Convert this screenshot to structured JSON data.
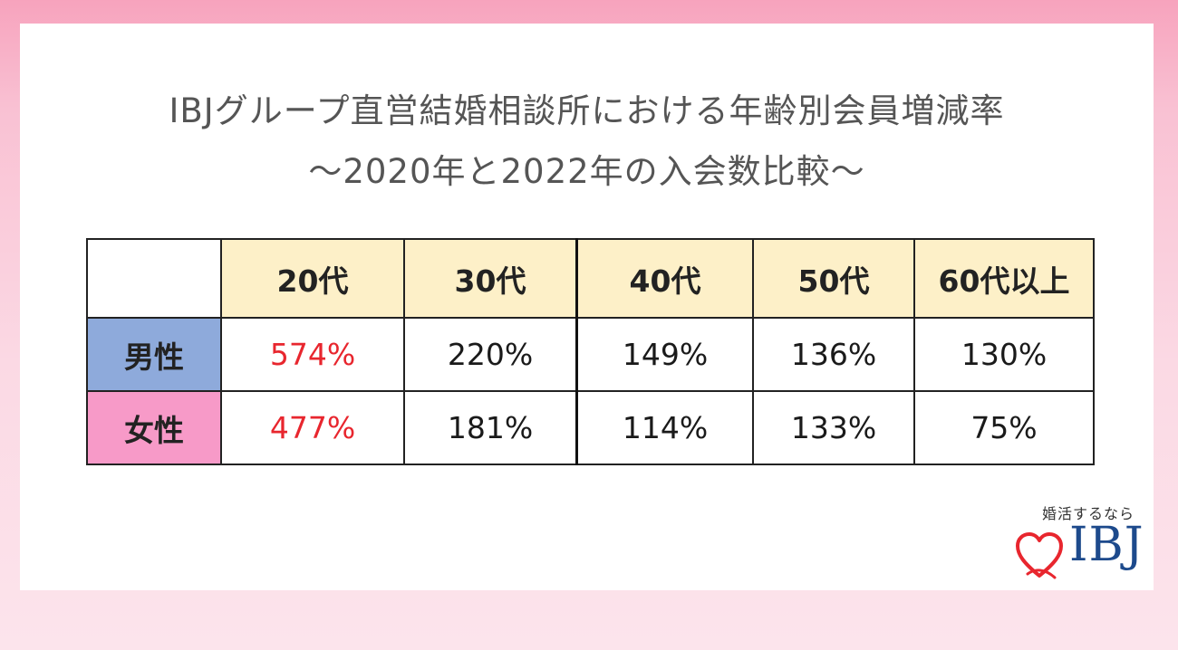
{
  "title": {
    "line1": "IBJグループ直営結婚相談所における年齢別会員増減率",
    "line2": "～2020年と2022年の入会数比較～"
  },
  "chart_data": {
    "type": "table",
    "columns": [
      "",
      "20代",
      "30代",
      "40代",
      "50代",
      "60代以上"
    ],
    "rows": [
      {
        "label": "男性",
        "values": [
          "574%",
          "220%",
          "149%",
          "136%",
          "130%"
        ]
      },
      {
        "label": "女性",
        "values": [
          "477%",
          "181%",
          "114%",
          "133%",
          "75%"
        ]
      }
    ],
    "highlight_column": "20代",
    "colors": {
      "header_bg": "#fdf0c8",
      "male_bg": "#8eaadb",
      "female_bg": "#f79ac8",
      "highlight_text": "#e8262e"
    }
  },
  "brand": {
    "tagline": "婚活するなら",
    "logo": "IBJ",
    "heart_icon": "heart-outline-icon",
    "heart_color": "#e8262e",
    "logo_color": "#1d4a8c"
  }
}
